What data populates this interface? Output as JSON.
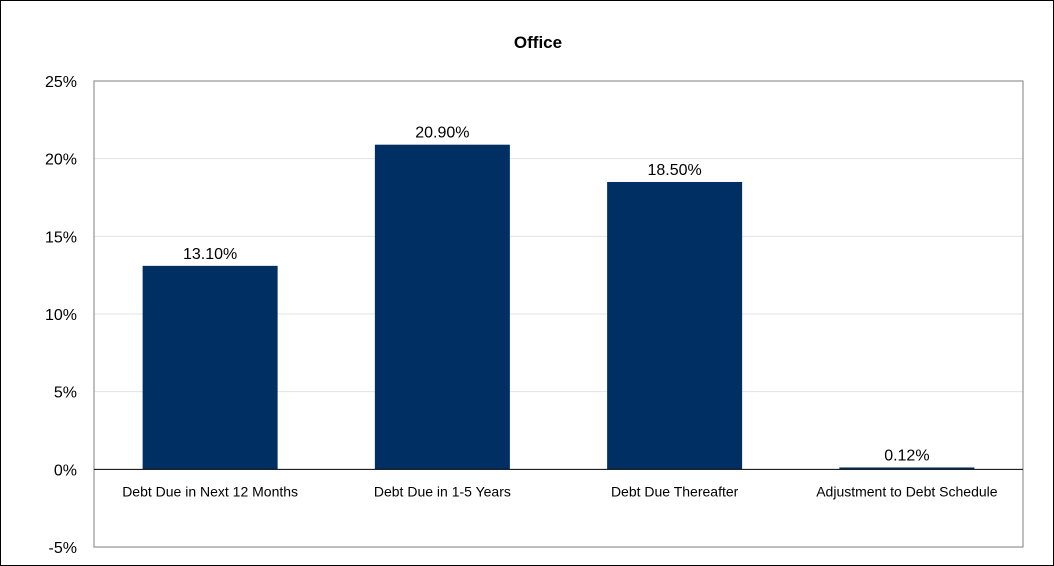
{
  "chart_data": {
    "type": "bar",
    "title": "Office",
    "xlabel": "",
    "ylabel": "",
    "categories": [
      "Debt Due in Next 12 Months",
      "Debt Due in 1-5 Years",
      "Debt Due Thereafter",
      "Adjustment to Debt Schedule"
    ],
    "values": [
      13.1,
      20.9,
      18.5,
      0.12
    ],
    "data_labels": [
      "13.10%",
      "20.90%",
      "18.50%",
      "0.12%"
    ],
    "ylim": [
      -5,
      25
    ],
    "yticks": [
      -5,
      0,
      5,
      10,
      15,
      20,
      25
    ],
    "ytick_labels": [
      "-5%",
      "0%",
      "5%",
      "10%",
      "15%",
      "20%",
      "25%"
    ],
    "grid": true,
    "legend": "none",
    "colors": {
      "bar": "#002f63",
      "grid": "#e3e3e3",
      "axis": "#000000",
      "plot_border": "#7f7f7f"
    }
  }
}
